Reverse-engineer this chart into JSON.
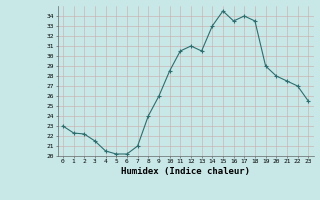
{
  "x": [
    0,
    1,
    2,
    3,
    4,
    5,
    6,
    7,
    8,
    9,
    10,
    11,
    12,
    13,
    14,
    15,
    16,
    17,
    18,
    19,
    20,
    21,
    22,
    23
  ],
  "y": [
    23.0,
    22.3,
    22.2,
    21.5,
    20.5,
    20.2,
    20.2,
    21.0,
    24.0,
    26.0,
    28.5,
    30.5,
    31.0,
    30.5,
    33.0,
    34.5,
    33.5,
    34.0,
    33.5,
    29.0,
    28.0,
    27.5,
    27.0,
    25.5
  ],
  "color": "#2d6e6e",
  "bg_color": "#c8e8e8",
  "grid_color": "#aaaacc",
  "xlabel": "Humidex (Indice chaleur)",
  "ylim": [
    20,
    35
  ],
  "xlim": [
    -0.5,
    23.5
  ],
  "yticks": [
    20,
    21,
    22,
    23,
    24,
    25,
    26,
    27,
    28,
    29,
    30,
    31,
    32,
    33,
    34
  ],
  "xticks": [
    0,
    1,
    2,
    3,
    4,
    5,
    6,
    7,
    8,
    9,
    10,
    11,
    12,
    13,
    14,
    15,
    16,
    17,
    18,
    19,
    20,
    21,
    22,
    23
  ]
}
